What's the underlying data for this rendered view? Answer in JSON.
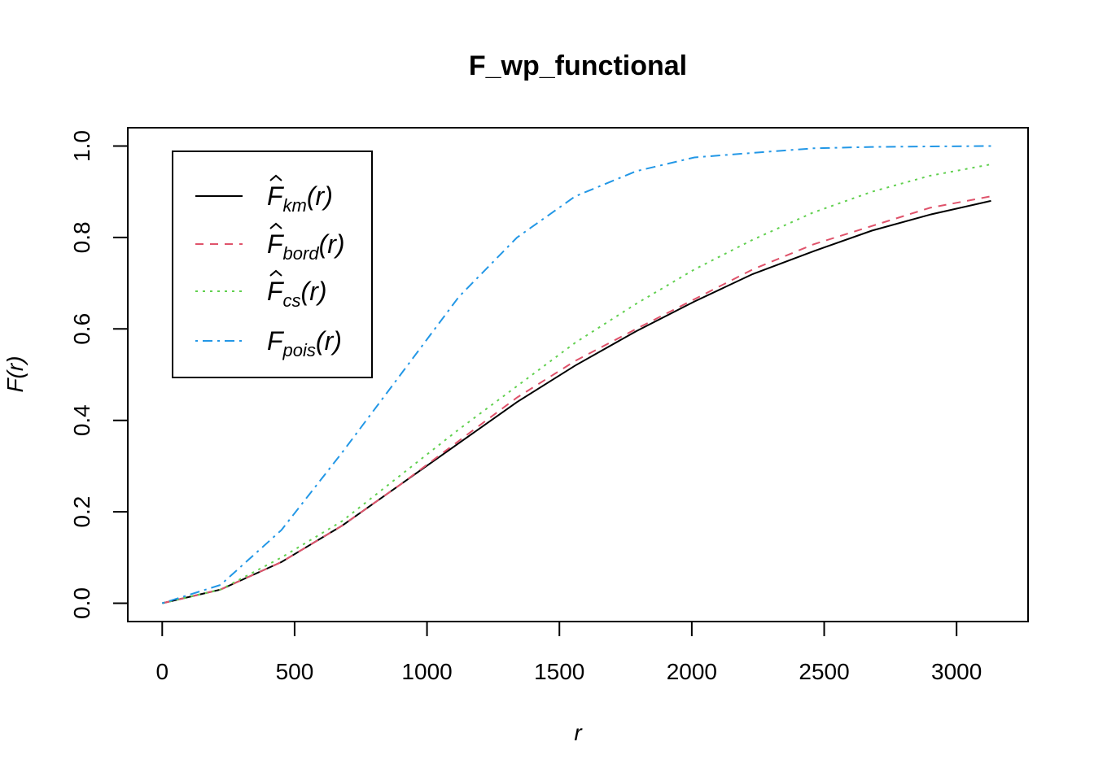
{
  "chart_data": {
    "type": "line",
    "title": "F_wp_functional",
    "xlabel": "r",
    "ylabel": "F(r)",
    "xlim": [
      -130,
      3270
    ],
    "ylim": [
      -0.04,
      1.04
    ],
    "xticks": [
      0,
      500,
      1000,
      1500,
      2000,
      2500,
      3000
    ],
    "xtick_labels": [
      "0",
      "500",
      "1000",
      "1500",
      "2000",
      "2500",
      "3000"
    ],
    "yticks": [
      0.0,
      0.2,
      0.4,
      0.6,
      0.8,
      1.0
    ],
    "ytick_labels": [
      "0.0",
      "0.2",
      "0.4",
      "0.6",
      "0.8",
      "1.0"
    ],
    "grid": false,
    "legend_position": "top-left",
    "x": [
      0,
      220,
      450,
      680,
      900,
      1120,
      1340,
      1560,
      1790,
      2010,
      2230,
      2460,
      2680,
      2900,
      3130
    ],
    "series": [
      {
        "name": "km",
        "legend_main": "F",
        "legend_sub": "km",
        "legend_hat": true,
        "color": "#000000",
        "dash": "",
        "values": [
          0.0,
          0.03,
          0.09,
          0.17,
          0.26,
          0.35,
          0.44,
          0.52,
          0.595,
          0.66,
          0.72,
          0.77,
          0.815,
          0.85,
          0.88
        ]
      },
      {
        "name": "bord",
        "legend_main": "F",
        "legend_sub": "bord",
        "legend_hat": true,
        "color": "#DF536B",
        "dash": "10,8",
        "values": [
          0.0,
          0.03,
          0.09,
          0.17,
          0.26,
          0.355,
          0.45,
          0.53,
          0.6,
          0.665,
          0.73,
          0.785,
          0.825,
          0.865,
          0.89
        ]
      },
      {
        "name": "cs",
        "legend_main": "F",
        "legend_sub": "cs",
        "legend_hat": true,
        "color": "#61D04F",
        "dash": "3,6",
        "values": [
          0.0,
          0.03,
          0.1,
          0.18,
          0.28,
          0.38,
          0.475,
          0.57,
          0.655,
          0.73,
          0.795,
          0.855,
          0.9,
          0.935,
          0.96
        ]
      },
      {
        "name": "pois",
        "legend_main": "F",
        "legend_sub": "pois",
        "legend_hat": false,
        "color": "#2297E6",
        "dash": "3,6,12,6",
        "values": [
          0.0,
          0.04,
          0.16,
          0.33,
          0.5,
          0.67,
          0.8,
          0.89,
          0.945,
          0.975,
          0.985,
          0.995,
          0.998,
          0.999,
          1.0
        ]
      }
    ]
  }
}
